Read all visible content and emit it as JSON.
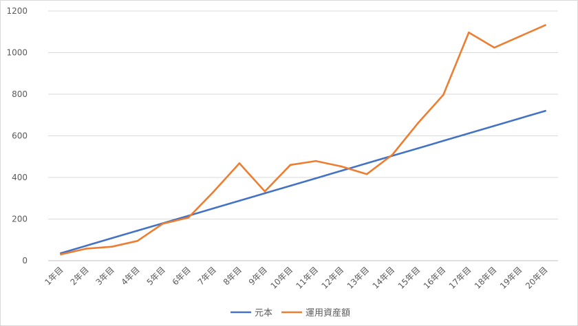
{
  "chart_data": {
    "type": "line",
    "categories": [
      "1年目",
      "2年目",
      "3年目",
      "4年目",
      "5年目",
      "6年目",
      "7年目",
      "8年目",
      "9年目",
      "10年目",
      "11年目",
      "12年目",
      "13年目",
      "14年目",
      "15年目",
      "16年目",
      "17年目",
      "18年目",
      "19年目",
      "20年目"
    ],
    "series": [
      {
        "name": "元本",
        "color": "#4472C4",
        "values": [
          36,
          72,
          108,
          144,
          180,
          216,
          252,
          288,
          324,
          360,
          396,
          432,
          468,
          504,
          540,
          576,
          612,
          648,
          684,
          720
        ]
      },
      {
        "name": "運用資産額",
        "color": "#ED7D31",
        "values": [
          30,
          58,
          67,
          95,
          178,
          207,
          333,
          468,
          333,
          460,
          479,
          453,
          416,
          509,
          660,
          797,
          1097,
          1024,
          1078,
          1132
        ]
      }
    ],
    "ylim": [
      0,
      1200
    ],
    "yticks": [
      0,
      200,
      400,
      600,
      800,
      1000,
      1200
    ],
    "grid": true,
    "legend": "bottom"
  }
}
